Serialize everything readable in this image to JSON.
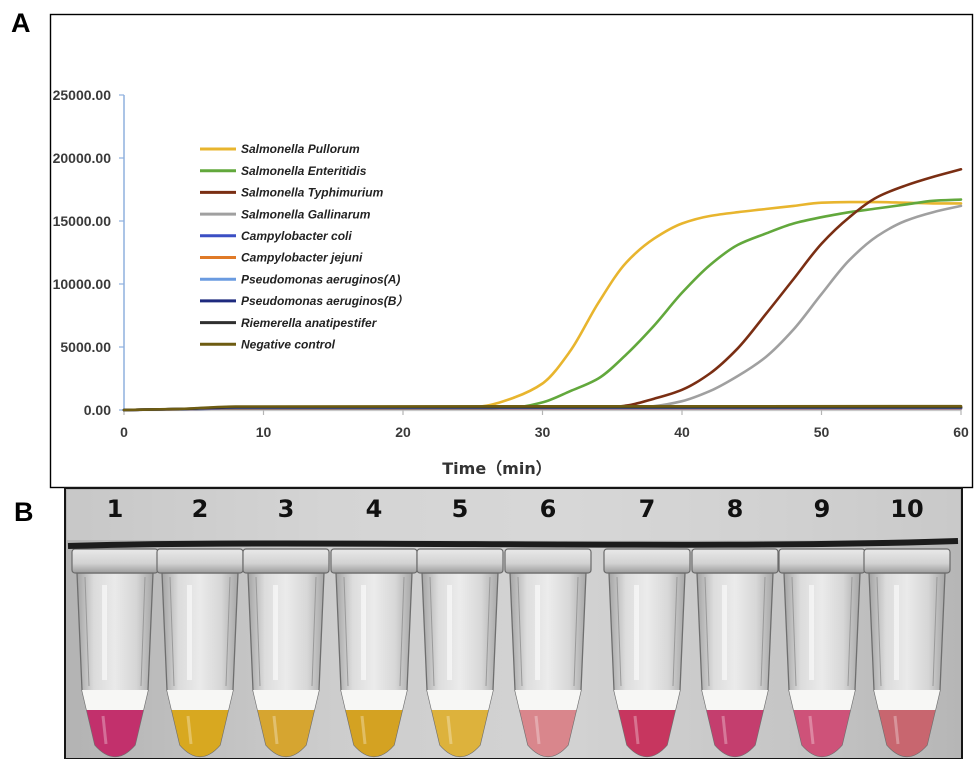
{
  "panels": {
    "a_label": "A",
    "b_label": "B"
  },
  "chart_data": {
    "type": "line",
    "xlabel": "Time（min）",
    "ylabel": "",
    "xlim": [
      0,
      60
    ],
    "ylim": [
      0,
      25000
    ],
    "x_ticks": [
      0,
      10,
      20,
      30,
      40,
      50,
      60
    ],
    "x_tick_labels": [
      "0",
      "10",
      "20",
      "30",
      "40",
      "50",
      "60"
    ],
    "y_ticks": [
      0,
      5000,
      10000,
      15000,
      20000,
      25000
    ],
    "y_tick_labels": [
      "0.00",
      "5000.00",
      "10000.00",
      "15000.00",
      "20000.00",
      "25000.00"
    ],
    "grid": false,
    "legend_position": "upper-left",
    "series": [
      {
        "name": "Salmonella Pullorum",
        "color": "#E8B52E",
        "x": [
          0,
          4,
          8,
          24,
          26,
          28,
          30,
          32,
          34,
          36,
          38,
          40,
          42,
          44,
          46,
          48,
          50,
          52,
          54,
          56,
          58,
          60
        ],
        "y": [
          0,
          80,
          130,
          150,
          350,
          1000,
          2100,
          4700,
          8500,
          11700,
          13600,
          14800,
          15400,
          15700,
          15950,
          16200,
          16450,
          16500,
          16500,
          16450,
          16400,
          16400
        ]
      },
      {
        "name": "Salmonella Enteritidis",
        "color": "#62A83C",
        "x": [
          0,
          4,
          8,
          26,
          28,
          30,
          32,
          34,
          36,
          38,
          40,
          42,
          44,
          46,
          48,
          50,
          52,
          54,
          56,
          58,
          60
        ],
        "y": [
          0,
          80,
          130,
          130,
          200,
          600,
          1500,
          2500,
          4400,
          6700,
          9300,
          11500,
          13100,
          14000,
          14800,
          15300,
          15700,
          16000,
          16300,
          16600,
          16700
        ]
      },
      {
        "name": "Salmonella Typhimurium",
        "color": "#7A2E13",
        "x": [
          0,
          4,
          8,
          34,
          36,
          38,
          40,
          42,
          44,
          46,
          48,
          50,
          52,
          54,
          56,
          58,
          60
        ],
        "y": [
          0,
          80,
          150,
          150,
          350,
          900,
          1600,
          2900,
          4900,
          7600,
          10400,
          13200,
          15300,
          16900,
          17800,
          18500,
          19100
        ]
      },
      {
        "name": "Salmonella Gallinarum",
        "color": "#A0A0A0",
        "x": [
          0,
          4,
          8,
          36,
          38,
          40,
          42,
          44,
          46,
          48,
          50,
          52,
          54,
          56,
          58,
          60
        ],
        "y": [
          0,
          80,
          150,
          150,
          300,
          700,
          1500,
          2700,
          4200,
          6400,
          9200,
          11900,
          13800,
          15000,
          15700,
          16200
        ]
      },
      {
        "name": "Campylobacter coli",
        "color": "#3B4FC4",
        "x": [
          0,
          4,
          8,
          60
        ],
        "y": [
          0,
          60,
          120,
          120
        ]
      },
      {
        "name": "Campylobacter jejuni",
        "color": "#E07A28",
        "x": [
          0,
          4,
          8,
          60
        ],
        "y": [
          0,
          60,
          150,
          150
        ]
      },
      {
        "name": "Pseudomonas aeruginos(A)",
        "color": "#6A9BE0",
        "x": [
          0,
          4,
          8,
          60
        ],
        "y": [
          0,
          70,
          180,
          180
        ]
      },
      {
        "name": "Pseudomonas aeruginos(B）",
        "color": "#1E2A7E",
        "x": [
          0,
          4,
          8,
          60
        ],
        "y": [
          0,
          70,
          200,
          200
        ]
      },
      {
        "name": "Riemerella anatipestifer",
        "color": "#2F2F2F",
        "x": [
          0,
          4,
          8,
          60
        ],
        "y": [
          0,
          80,
          230,
          230
        ]
      },
      {
        "name": "Negative control",
        "color": "#6E5C12",
        "x": [
          0,
          4,
          8,
          60
        ],
        "y": [
          0,
          90,
          280,
          300
        ]
      }
    ]
  },
  "panel_b": {
    "tubes": [
      {
        "label": "1",
        "liquid_color": "#C2306C"
      },
      {
        "label": "2",
        "liquid_color": "#D8A820"
      },
      {
        "label": "3",
        "liquid_color": "#D6A530"
      },
      {
        "label": "4",
        "liquid_color": "#D4A222"
      },
      {
        "label": "5",
        "liquid_color": "#DDB23C"
      },
      {
        "label": "6",
        "liquid_color": "#D9868C"
      },
      {
        "label": "7",
        "liquid_color": "#C7365F"
      },
      {
        "label": "8",
        "liquid_color": "#C43E6E"
      },
      {
        "label": "9",
        "liquid_color": "#CE5279"
      },
      {
        "label": "10",
        "liquid_color": "#C8666F"
      }
    ]
  }
}
